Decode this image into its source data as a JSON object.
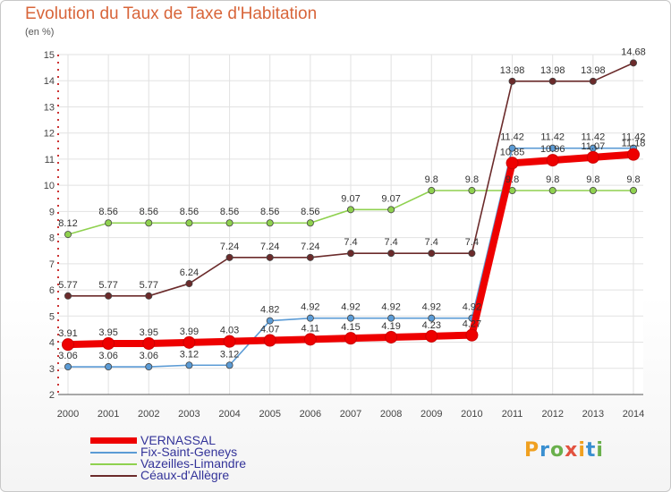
{
  "header": {
    "title": "Evolution du Taux de Taxe d'Habitation",
    "units": "(en %)"
  },
  "logo": {
    "letters": [
      "P",
      "r",
      "o",
      "x",
      "i",
      "t",
      "i"
    ],
    "colors": [
      "#f0a020",
      "#3a8fd0",
      "#6ab04c",
      "#e2523f",
      "#f0a020",
      "#3a8fd0",
      "#6ab04c"
    ]
  },
  "chart_data": {
    "type": "line",
    "title": "Evolution du Taux de Taxe d'Habitation",
    "ylabel": "(en %)",
    "xlabel": "",
    "ylim": [
      2,
      15
    ],
    "yticks": [
      2,
      3,
      4,
      5,
      6,
      7,
      8,
      9,
      10,
      11,
      12,
      13,
      14,
      15
    ],
    "grid": true,
    "legend": "bottom-left",
    "x": [
      "2000",
      "2001",
      "2002",
      "2003",
      "2004",
      "2005",
      "2006",
      "2007",
      "2008",
      "2009",
      "2010",
      "2011",
      "2012",
      "2013",
      "2014"
    ],
    "series": [
      {
        "name": "VERNASSAL",
        "color": "#ee0000",
        "values": [
          3.91,
          3.95,
          3.95,
          3.99,
          4.03,
          4.07,
          4.11,
          4.15,
          4.19,
          4.23,
          4.27,
          10.85,
          10.96,
          11.07,
          11.18
        ],
        "labels": [
          "3.91",
          "3.95",
          "3.95",
          "3.99",
          "4.03",
          "4.07",
          "4.11",
          "4.15",
          "4.19",
          "4.23",
          "4.27",
          "10.85",
          "10.96",
          "11.07",
          "11.18"
        ]
      },
      {
        "name": "Fix-Saint-Geneys",
        "color": "#5b9bd5",
        "values": [
          3.06,
          3.06,
          3.06,
          3.12,
          3.12,
          4.82,
          4.92,
          4.92,
          4.92,
          4.92,
          4.92,
          11.42,
          11.42,
          11.42,
          11.42
        ],
        "labels": [
          "3.06",
          "3.06",
          "3.06",
          "3.12",
          "3.12",
          "4.82",
          "4.92",
          "4.92",
          "4.92",
          "4.92",
          "4.92",
          "11.42",
          "11.42",
          "11.42",
          "11.42"
        ]
      },
      {
        "name": "Vazeilles-Limandre",
        "color": "#8fd14f",
        "values": [
          8.12,
          8.56,
          8.56,
          8.56,
          8.56,
          8.56,
          8.56,
          9.07,
          9.07,
          9.8,
          9.8,
          9.8,
          9.8,
          9.8,
          9.8
        ],
        "labels": [
          "8.12",
          "8.56",
          "8.56",
          "8.56",
          "8.56",
          "8.56",
          "8.56",
          "9.07",
          "9.07",
          "9.8",
          "9.8",
          "9.8",
          "9.8",
          "9.8",
          "9.8"
        ]
      },
      {
        "name": "Céaux-d'Allègre",
        "color": "#6b2b2b",
        "values": [
          5.77,
          5.77,
          5.77,
          6.24,
          7.24,
          7.24,
          7.24,
          7.4,
          7.4,
          7.4,
          7.4,
          13.98,
          13.98,
          13.98,
          14.68
        ],
        "labels": [
          "5.77",
          "5.77",
          "5.77",
          "6.24",
          "7.24",
          "7.24",
          "7.24",
          "7.4",
          "7.4",
          "7.4",
          "7.4",
          "13.98",
          "13.98",
          "13.98",
          "14.68"
        ]
      }
    ]
  }
}
